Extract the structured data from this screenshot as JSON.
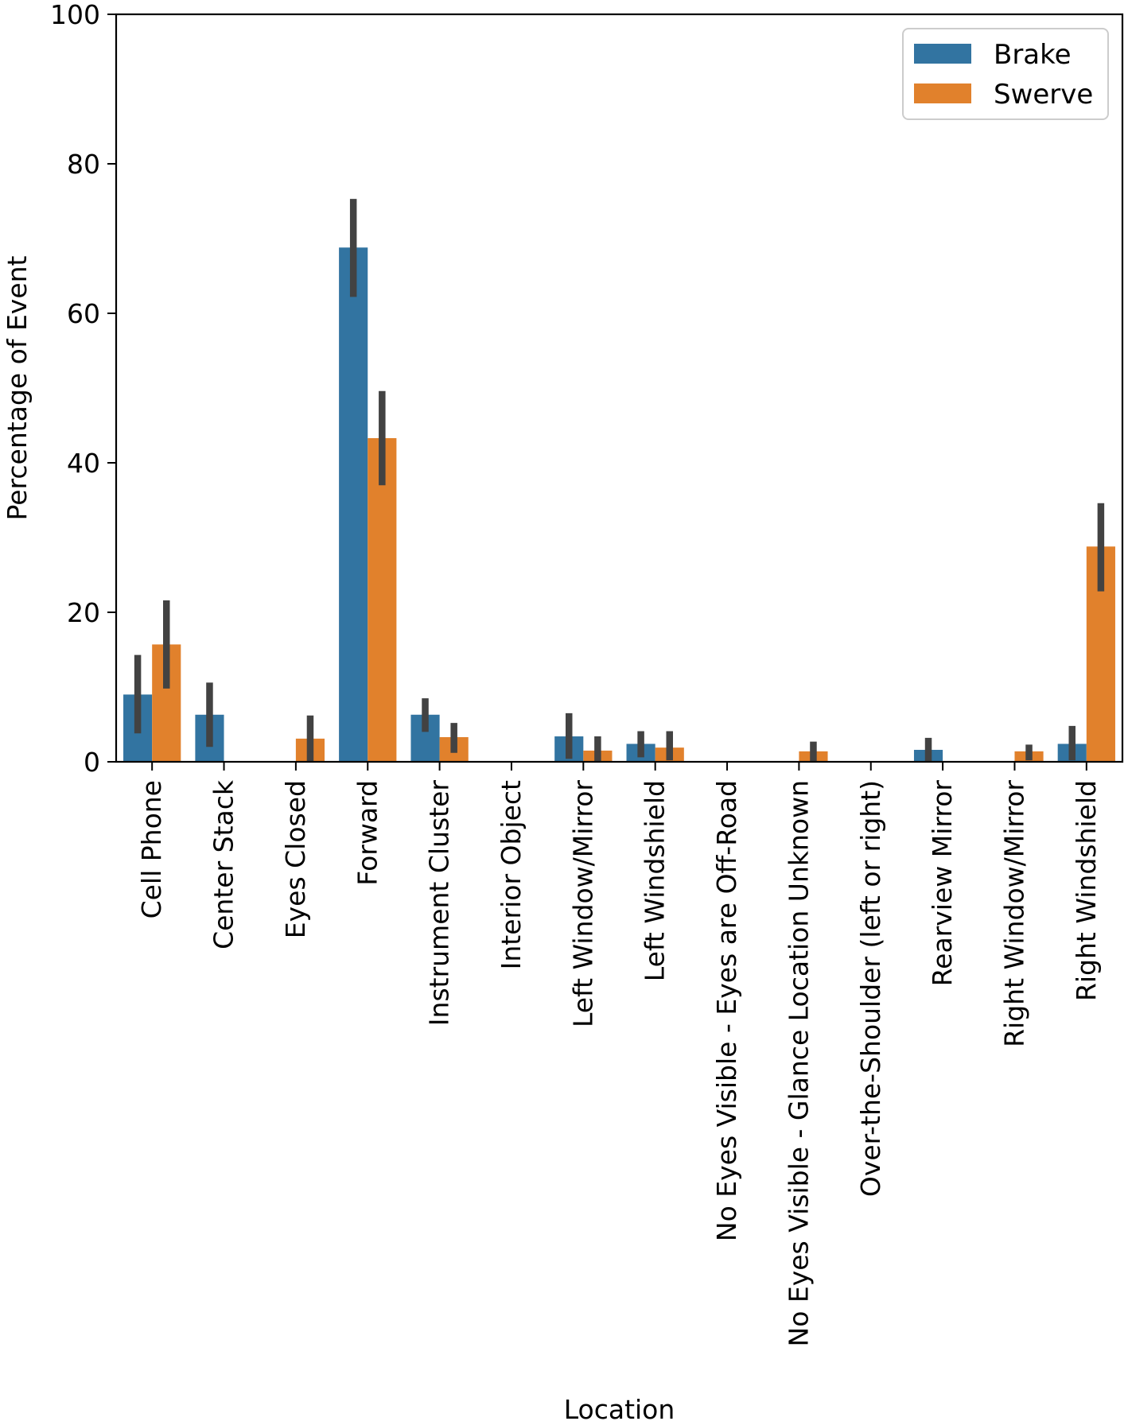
{
  "chart_data": {
    "type": "bar",
    "title": "",
    "xlabel": "Location",
    "ylabel": "Percentage of Event",
    "ylim": [
      0,
      100
    ],
    "yticks": [
      0,
      20,
      40,
      60,
      80,
      100
    ],
    "grid": false,
    "legend_position": "top-right",
    "categories": [
      "Cell Phone",
      "Center Stack",
      "Eyes Closed",
      "Forward",
      "Instrument Cluster",
      "Interior Object",
      "Left Window/Mirror",
      "Left Windshield",
      "No Eyes Visible - Eyes are Off-Road",
      "No Eyes Visible - Glance Location Unknown",
      "Over-the-Shoulder (left or right)",
      "Rearview Mirror",
      "Right Window/Mirror",
      "Right Windshield"
    ],
    "series": [
      {
        "name": "Brake",
        "color": "#3274a1",
        "values": [
          9.0,
          6.3,
          0,
          68.8,
          6.3,
          0,
          3.4,
          2.4,
          0,
          0,
          0,
          1.6,
          0,
          2.4
        ],
        "error_low": [
          3.8,
          2.0,
          null,
          62.2,
          4.0,
          null,
          0.4,
          0.6,
          null,
          null,
          null,
          0.1,
          null,
          0.2
        ],
        "error_high": [
          14.3,
          10.6,
          null,
          75.3,
          8.5,
          null,
          6.5,
          4.1,
          null,
          null,
          null,
          3.2,
          null,
          4.8
        ]
      },
      {
        "name": "Swerve",
        "color": "#e1812c",
        "values": [
          15.7,
          0,
          3.1,
          43.3,
          3.3,
          0,
          1.5,
          1.9,
          0,
          1.4,
          0,
          0,
          1.4,
          28.8
        ],
        "error_low": [
          9.8,
          null,
          0.1,
          37.0,
          1.2,
          null,
          0.1,
          0.2,
          null,
          0.1,
          null,
          null,
          0.2,
          22.8
        ],
        "error_high": [
          21.6,
          null,
          6.2,
          49.6,
          5.2,
          null,
          3.4,
          4.1,
          null,
          2.7,
          null,
          null,
          2.3,
          34.6
        ]
      }
    ]
  }
}
